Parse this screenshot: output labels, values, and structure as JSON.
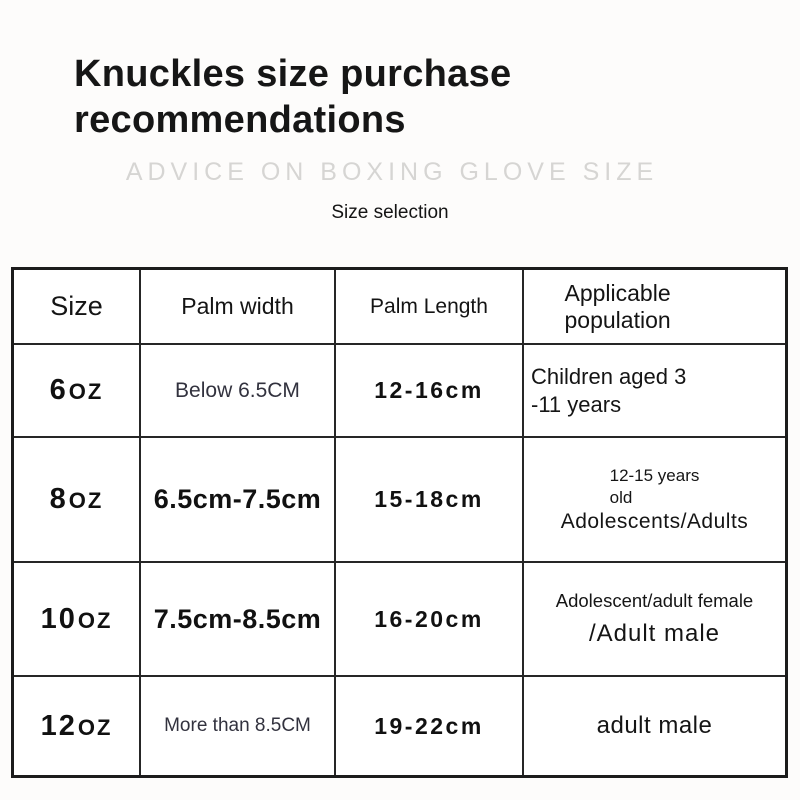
{
  "page": {
    "title": "Knuckles size purchase recommendations",
    "subtitle": "ADVICE ON BOXING GLOVE SIZE",
    "caption": "Size selection"
  },
  "table": {
    "headers": [
      "Size",
      "Palm width",
      "Palm Length",
      "Applicable population"
    ],
    "rows": [
      {
        "size_num": "6",
        "size_unit": "oz",
        "palm_width": "Below 6.5CM",
        "palm_length": "12-16cm",
        "population": [
          "Children aged 3",
          "-11 years"
        ]
      },
      {
        "size_num": "8",
        "size_unit": "oz",
        "palm_width": "6.5cm-7.5cm",
        "palm_length": "15-18cm",
        "population": [
          "12-15 years",
          "old",
          "Adolescents/Adults"
        ]
      },
      {
        "size_num": "10",
        "size_unit": "oz",
        "palm_width": "7.5cm-8.5cm",
        "palm_length": "16-20cm",
        "population": [
          "Adolescent/adult female",
          "/Adult male"
        ]
      },
      {
        "size_num": "12",
        "size_unit": "oz",
        "palm_width": "More than 8.5CM",
        "palm_length": "19-22cm",
        "population": [
          "adult male"
        ]
      }
    ]
  },
  "colors": {
    "text_black": "#141414",
    "bold_black": "#111111",
    "navy_text": "#32323e",
    "subtitle_gray": "#d6d5d3",
    "border": "#1c1c1c"
  }
}
